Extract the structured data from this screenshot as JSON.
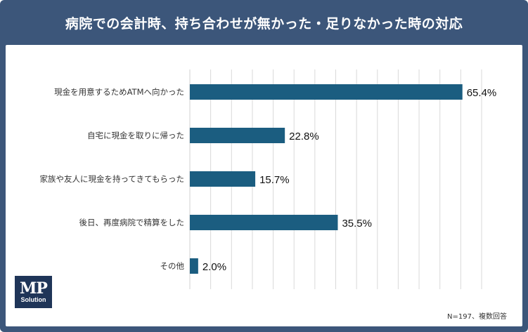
{
  "title": "病院での会計時、持ち合わせが無かった・足りなかった時の対応",
  "note": "N=197、複数回答",
  "logo": {
    "main": "MP",
    "sub": "Solution"
  },
  "colors": {
    "frame": "#3c567a",
    "bar": "#1b5d80",
    "grid": "#d9d9d9"
  },
  "chart_data": {
    "type": "bar",
    "orientation": "horizontal",
    "categories": [
      "現金を用意するためATMへ向かった",
      "自宅に現金を取りに帰った",
      "家族や友人に現金を持ってきてもらった",
      "後日、再度病院で精算をした",
      "その他"
    ],
    "values": [
      65.4,
      22.8,
      15.7,
      35.5,
      2.0
    ],
    "value_labels": [
      "65.4%",
      "22.8%",
      "15.7%",
      "35.5%",
      "2.0%"
    ],
    "xlim": [
      0,
      70
    ],
    "grid": true
  }
}
